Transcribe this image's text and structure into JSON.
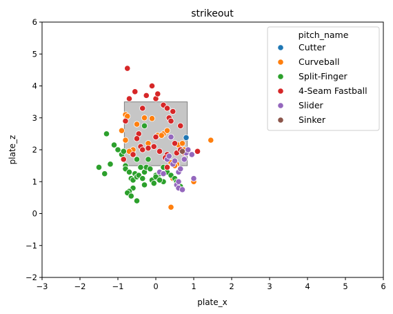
{
  "chart_data": {
    "type": "scatter",
    "title": "strikeout",
    "xlabel": "plate_x",
    "ylabel": "plate_z",
    "xlim": [
      -3,
      6
    ],
    "ylim": [
      -2,
      6
    ],
    "xticks": [
      -3,
      -2,
      -1,
      0,
      1,
      2,
      3,
      4,
      5,
      6
    ],
    "yticks": [
      -2,
      -1,
      0,
      1,
      2,
      3,
      4,
      5,
      6
    ],
    "grid": false,
    "legend_title": "pitch_name",
    "legend_placement": "top-right",
    "strike_zone": {
      "x": [
        -0.83,
        0.83
      ],
      "z": [
        1.5,
        3.5
      ],
      "color": "#808080"
    },
    "series": [
      {
        "name": "Cutter",
        "color": "#1f77b4",
        "points": [
          [
            0.8,
            2.38
          ]
        ]
      },
      {
        "name": "Curveball",
        "color": "#ff7f0e",
        "points": [
          [
            -0.9,
            2.6
          ],
          [
            -0.8,
            3.1
          ],
          [
            -0.75,
            3.05
          ],
          [
            -0.8,
            2.3
          ],
          [
            -0.6,
            2.0
          ],
          [
            -0.3,
            3.0
          ],
          [
            -0.1,
            2.98
          ],
          [
            -0.5,
            2.8
          ],
          [
            0.05,
            2.45
          ],
          [
            0.2,
            2.5
          ],
          [
            0.3,
            2.6
          ],
          [
            0.4,
            1.6
          ],
          [
            0.55,
            1.55
          ],
          [
            0.6,
            2.15
          ],
          [
            0.7,
            2.2
          ],
          [
            0.75,
            2.0
          ],
          [
            0.5,
            1.5
          ],
          [
            0.95,
            1.85
          ],
          [
            1.0,
            1.0
          ],
          [
            1.45,
            2.3
          ],
          [
            0.4,
            0.2
          ],
          [
            -0.7,
            1.95
          ],
          [
            -0.2,
            2.2
          ],
          [
            0.15,
            2.45
          ],
          [
            0.45,
            1.1
          ]
        ]
      },
      {
        "name": "Split-Finger",
        "color": "#2ca02c",
        "points": [
          [
            -1.5,
            1.45
          ],
          [
            -1.3,
            2.5
          ],
          [
            -1.2,
            1.55
          ],
          [
            -1.1,
            2.15
          ],
          [
            -1.0,
            2.0
          ],
          [
            -0.9,
            1.85
          ],
          [
            -0.85,
            1.7
          ],
          [
            -0.8,
            1.5
          ],
          [
            -0.8,
            1.4
          ],
          [
            -0.7,
            1.3
          ],
          [
            -0.65,
            1.1
          ],
          [
            -0.6,
            1.05
          ],
          [
            -0.55,
            1.25
          ],
          [
            -0.5,
            1.15
          ],
          [
            -0.45,
            1.2
          ],
          [
            -0.35,
            1.1
          ],
          [
            -0.3,
            1.3
          ],
          [
            -0.25,
            1.45
          ],
          [
            -0.2,
            1.7
          ],
          [
            -0.15,
            1.4
          ],
          [
            -0.1,
            1.05
          ],
          [
            0.0,
            1.2
          ],
          [
            0.05,
            1.1
          ],
          [
            0.1,
            1.25
          ],
          [
            0.2,
            1.45
          ],
          [
            0.3,
            1.3
          ],
          [
            0.4,
            1.2
          ],
          [
            0.5,
            1.1
          ],
          [
            0.55,
            1.0
          ],
          [
            0.65,
            0.85
          ],
          [
            -0.6,
            0.8
          ],
          [
            -0.7,
            0.7
          ],
          [
            -0.75,
            0.65
          ],
          [
            -0.65,
            0.55
          ],
          [
            -0.5,
            0.4
          ],
          [
            -0.3,
            0.9
          ],
          [
            -0.05,
            0.95
          ],
          [
            0.2,
            1.0
          ],
          [
            -0.3,
            2.75
          ],
          [
            -0.5,
            1.7
          ],
          [
            -0.85,
            1.95
          ],
          [
            -1.35,
            1.25
          ],
          [
            -0.4,
            1.45
          ],
          [
            0.0,
            1.15
          ],
          [
            0.1,
            1.05
          ]
        ]
      },
      {
        "name": "4-Seam Fastball",
        "color": "#d62728",
        "points": [
          [
            -0.75,
            4.55
          ],
          [
            -0.55,
            3.82
          ],
          [
            -0.25,
            3.7
          ],
          [
            -0.1,
            4.0
          ],
          [
            0.0,
            3.6
          ],
          [
            0.05,
            3.75
          ],
          [
            0.2,
            3.4
          ],
          [
            0.3,
            3.3
          ],
          [
            0.35,
            3.0
          ],
          [
            0.4,
            2.9
          ],
          [
            0.45,
            3.2
          ],
          [
            0.65,
            2.75
          ],
          [
            -0.8,
            2.9
          ],
          [
            -0.7,
            3.6
          ],
          [
            -0.45,
            2.5
          ],
          [
            -0.5,
            2.35
          ],
          [
            -0.4,
            2.1
          ],
          [
            -0.35,
            2.0
          ],
          [
            -0.2,
            2.05
          ],
          [
            -0.05,
            2.1
          ],
          [
            0.0,
            2.4
          ],
          [
            0.1,
            1.95
          ],
          [
            0.3,
            1.85
          ],
          [
            0.55,
            1.9
          ],
          [
            0.65,
            2.0
          ],
          [
            0.85,
            1.95
          ],
          [
            1.1,
            1.95
          ],
          [
            0.3,
            1.45
          ],
          [
            -0.85,
            1.7
          ],
          [
            -0.6,
            1.85
          ],
          [
            -0.35,
            3.3
          ],
          [
            0.5,
            2.2
          ],
          [
            0.75,
            1.9
          ],
          [
            0.25,
            1.75
          ]
        ]
      },
      {
        "name": "Slider",
        "color": "#9467bd",
        "points": [
          [
            0.1,
            1.3
          ],
          [
            0.2,
            1.25
          ],
          [
            0.3,
            1.7
          ],
          [
            0.35,
            1.8
          ],
          [
            0.45,
            1.55
          ],
          [
            0.5,
            1.65
          ],
          [
            0.6,
            1.3
          ],
          [
            0.65,
            1.4
          ],
          [
            0.55,
            0.9
          ],
          [
            0.6,
            0.8
          ],
          [
            0.7,
            0.75
          ],
          [
            0.8,
            1.9
          ],
          [
            0.95,
            1.85
          ],
          [
            1.0,
            1.1
          ],
          [
            0.85,
            2.0
          ],
          [
            0.4,
            2.4
          ],
          [
            0.6,
            1.0
          ],
          [
            0.75,
            1.7
          ]
        ]
      },
      {
        "name": "Sinker",
        "color": "#8c564b",
        "points": [
          [
            0.7,
            1.95
          ]
        ]
      }
    ]
  }
}
